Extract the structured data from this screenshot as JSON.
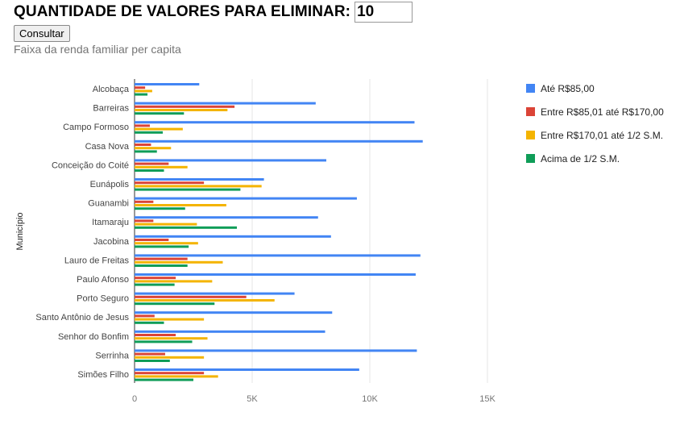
{
  "form": {
    "label": "QUANTIDADE DE VALORES PARA ELIMINAR:",
    "input_value": "10",
    "button_label": "Consultar"
  },
  "colors": {
    "series": [
      "#4285f4",
      "#db4437",
      "#f4b400",
      "#0f9d58"
    ],
    "grid": "#e6e6e6",
    "axis_text": "#757575",
    "label_text": "#444444"
  },
  "chart_data": {
    "type": "bar",
    "orientation": "horizontal",
    "title": "Faixa da renda familiar per capita",
    "ylabel": "Município",
    "xlabel": "",
    "categories": [
      "Alcobaça",
      "Barreiras",
      "Campo Formoso",
      "Casa Nova",
      "Conceição do Coité",
      "Eunápolis",
      "Guanambi",
      "Itamaraju",
      "Jacobina",
      "Lauro de Freitas",
      "Paulo Afonso",
      "Porto Seguro",
      "Santo Antônio de Jesus",
      "Senhor do Bonfim",
      "Serrinha",
      "Simões Filho"
    ],
    "series": [
      {
        "name": "Até R$85,00",
        "values": [
          2750,
          7700,
          11900,
          12250,
          8150,
          5500,
          9450,
          7800,
          8350,
          12150,
          11950,
          6800,
          8400,
          8100,
          12000,
          9550
        ]
      },
      {
        "name": "Entre R$85,01 até R$170,00",
        "values": [
          450,
          4250,
          650,
          700,
          1450,
          2950,
          800,
          800,
          1450,
          2250,
          1750,
          4750,
          850,
          1750,
          1300,
          2950
        ]
      },
      {
        "name": "Entre R$170,01 até 1/2 S.M.",
        "values": [
          750,
          3950,
          2050,
          1550,
          2250,
          5400,
          3900,
          2650,
          2700,
          3750,
          3300,
          5950,
          2950,
          3100,
          2950,
          3550
        ]
      },
      {
        "name": "Acima de 1/2 S.M.",
        "values": [
          550,
          2100,
          1200,
          950,
          1250,
          4500,
          2150,
          4350,
          2300,
          2250,
          1700,
          3400,
          1250,
          2450,
          1500,
          2500
        ]
      }
    ],
    "xlim": [
      0,
      15000
    ],
    "xticks": [
      0,
      5000,
      10000,
      15000
    ],
    "xtick_labels": [
      "0",
      "5K",
      "10K",
      "15K"
    ],
    "grid": true,
    "legend_position": "right"
  }
}
